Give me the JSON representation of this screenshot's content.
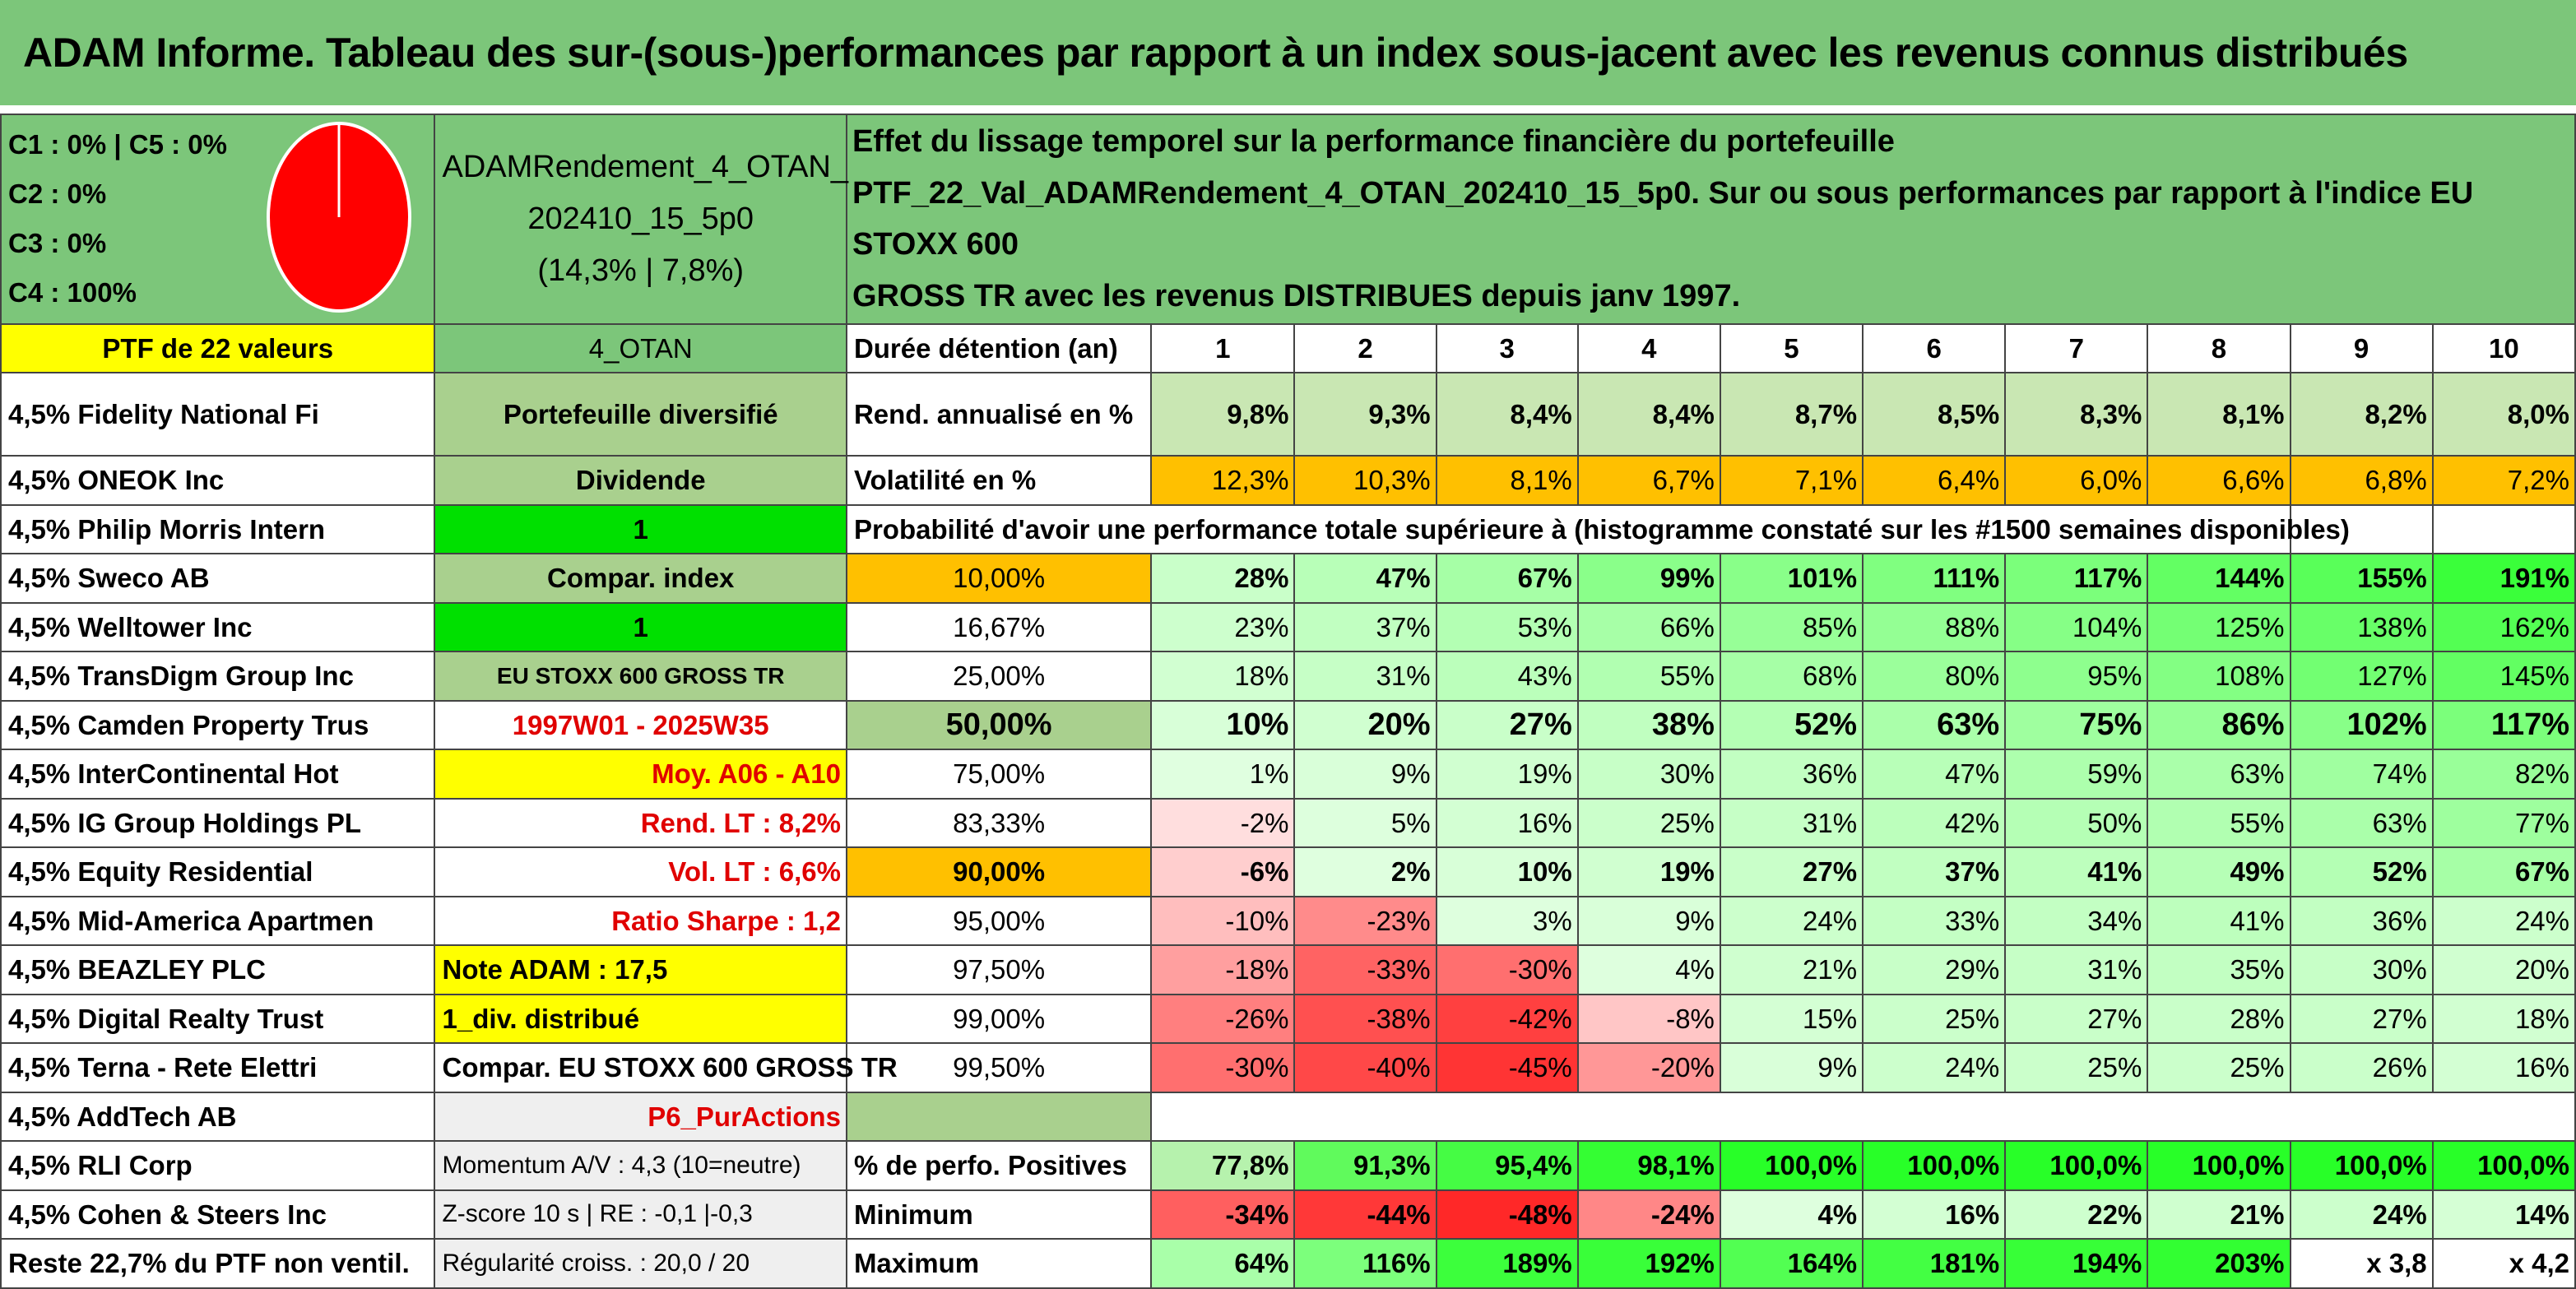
{
  "title": "ADAM Informe. Tableau des sur-(sous-)performances par rapport à un index sous-jacent avec les revenus connus distribués",
  "allocation": [
    "C1 : 0% | C5 : 0%",
    "C2 : 0%",
    "C3 : 0%",
    "C4 : 100%"
  ],
  "pie_slices": [
    {
      "label": "C4",
      "value": 100,
      "color": "#ff0000"
    }
  ],
  "portfolio": {
    "name_line1": "ADAMRendement_4_OTAN_",
    "name_line2": "202410_15_5p0",
    "name_line3": "(14,3% | 7,8%)"
  },
  "description": {
    "line1": "Effet du lissage temporel sur la performance financière du portefeuille",
    "line2": "PTF_22_Val_ADAMRendement_4_OTAN_202410_15_5p0. Sur ou sous performances par rapport à l'indice EU STOXX 600",
    "line3": "GROSS TR avec les revenus DISTRIBUES depuis janv 1997."
  },
  "header_row": {
    "ptf": "PTF de 22 valeurs",
    "code": "4_OTAN",
    "duration_label": "Durée détention (an)",
    "years": [
      "1",
      "2",
      "3",
      "4",
      "5",
      "6",
      "7",
      "8",
      "9",
      "10"
    ]
  },
  "holdings": [
    "4,5% Fidelity National Fi",
    "4,5% ONEOK Inc",
    "4,5% Philip Morris Intern",
    "4,5% Sweco AB",
    "4,5% Welltower Inc",
    "4,5% TransDigm Group Inc",
    "4,5% Camden Property Trus",
    "4,5% InterContinental Hot",
    "4,5% IG Group Holdings PL",
    "4,5% Equity Residential",
    "4,5% Mid-America Apartmen",
    "4,5% BEAZLEY PLC",
    "4,5% Digital Realty Trust",
    "4,5% Terna - Rete Elettri",
    "4,5% AddTech AB",
    "4,5% RLI Corp",
    "4,5% Cohen & Steers Inc",
    "Reste 22,7% du PTF non ventil."
  ],
  "info": [
    "Portefeuille diversifié",
    "Dividende",
    "1",
    "Compar. index",
    "1",
    "EU STOXX 600 GROSS TR",
    "1997W01 - 2025W35",
    "Moy. A06 - A10",
    "Rend. LT : 8,2%",
    "Vol. LT : 6,6%",
    "Ratio Sharpe : 1,2",
    "Note ADAM : 17,5",
    "1_div. distribué",
    "Compar. EU STOXX 600 GROSS TR",
    "P6_PurActions",
    "Momentum A/V : 4,3 (10=neutre)",
    "Z-score 10 s | RE : -0,1 |-0,3",
    "Régularité croiss. : 20,0 / 20"
  ],
  "returns": {
    "label": "Rend. annualisé en %",
    "values": [
      "9,8%",
      "9,3%",
      "8,4%",
      "8,4%",
      "8,7%",
      "8,5%",
      "8,3%",
      "8,1%",
      "8,2%",
      "8,0%"
    ]
  },
  "volatility": {
    "label": "Volatilité en %",
    "values": [
      "12,3%",
      "10,3%",
      "8,1%",
      "6,7%",
      "7,1%",
      "6,4%",
      "6,0%",
      "6,6%",
      "6,8%",
      "7,2%"
    ]
  },
  "probability_title": "Probabilité d'avoir une performance totale supérieure à (histogramme constaté sur les #1500 semaines disponibles)",
  "probability_rows": [
    {
      "level": "10,00%",
      "values": [
        "28%",
        "47%",
        "67%",
        "99%",
        "101%",
        "111%",
        "117%",
        "144%",
        "155%",
        "191%"
      ]
    },
    {
      "level": "16,67%",
      "values": [
        "23%",
        "37%",
        "53%",
        "66%",
        "85%",
        "88%",
        "104%",
        "125%",
        "138%",
        "162%"
      ]
    },
    {
      "level": "25,00%",
      "values": [
        "18%",
        "31%",
        "43%",
        "55%",
        "68%",
        "80%",
        "95%",
        "108%",
        "127%",
        "145%"
      ]
    },
    {
      "level": "50,00%",
      "values": [
        "10%",
        "20%",
        "27%",
        "38%",
        "52%",
        "63%",
        "75%",
        "86%",
        "102%",
        "117%"
      ]
    },
    {
      "level": "75,00%",
      "values": [
        "1%",
        "9%",
        "19%",
        "30%",
        "36%",
        "47%",
        "59%",
        "63%",
        "74%",
        "82%"
      ]
    },
    {
      "level": "83,33%",
      "values": [
        "-2%",
        "5%",
        "16%",
        "25%",
        "31%",
        "42%",
        "50%",
        "55%",
        "63%",
        "77%"
      ]
    },
    {
      "level": "90,00%",
      "values": [
        "-6%",
        "2%",
        "10%",
        "19%",
        "27%",
        "37%",
        "41%",
        "49%",
        "52%",
        "67%"
      ]
    },
    {
      "level": "95,00%",
      "values": [
        "-10%",
        "-23%",
        "3%",
        "9%",
        "24%",
        "33%",
        "34%",
        "41%",
        "36%",
        "24%"
      ]
    },
    {
      "level": "97,50%",
      "values": [
        "-18%",
        "-33%",
        "-30%",
        "4%",
        "21%",
        "29%",
        "31%",
        "35%",
        "30%",
        "20%"
      ]
    },
    {
      "level": "99,00%",
      "values": [
        "-26%",
        "-38%",
        "-42%",
        "-8%",
        "15%",
        "25%",
        "27%",
        "28%",
        "27%",
        "18%"
      ]
    },
    {
      "level": "99,50%",
      "values": [
        "-30%",
        "-40%",
        "-45%",
        "-20%",
        "9%",
        "24%",
        "25%",
        "25%",
        "26%",
        "16%"
      ]
    }
  ],
  "positive": {
    "label": "% de perfo. Positives",
    "values": [
      "77,8%",
      "91,3%",
      "95,4%",
      "98,1%",
      "100,0%",
      "100,0%",
      "100,0%",
      "100,0%",
      "100,0%",
      "100,0%"
    ]
  },
  "minimum": {
    "label": "Minimum",
    "values": [
      "-34%",
      "-44%",
      "-48%",
      "-24%",
      "4%",
      "16%",
      "22%",
      "21%",
      "24%",
      "14%"
    ]
  },
  "maximum": {
    "label": "Maximum",
    "values": [
      "64%",
      "116%",
      "189%",
      "192%",
      "164%",
      "181%",
      "194%",
      "203%",
      "x 3,8",
      "x 4,2"
    ]
  },
  "colors": {
    "title_green": "#7cc67a",
    "highlight_yellow": "#ffff00",
    "highlight_orange": "#ffc000",
    "bright_green": "#00e000",
    "label_red": "#e00000"
  }
}
